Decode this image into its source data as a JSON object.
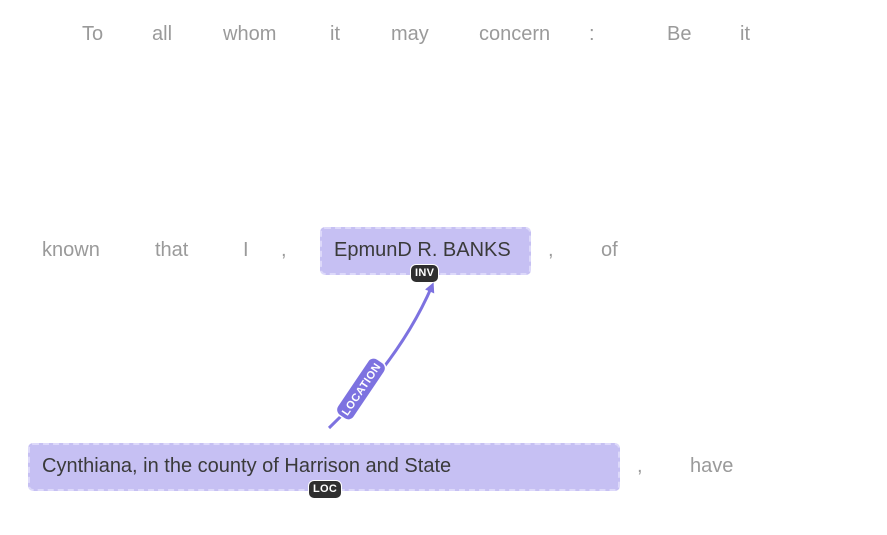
{
  "lines": [
    [
      "To",
      "all",
      "whom",
      "it",
      "may",
      "concern",
      ":",
      "Be",
      "it"
    ],
    [
      "known",
      "that",
      "I",
      ",",
      ",",
      "of"
    ],
    [
      ",",
      "have"
    ]
  ],
  "entities": [
    {
      "text": "EpmunD R. BANKS",
      "tag": "INV"
    },
    {
      "text": "Cynthiana, in the county of Harrison and State",
      "tag": "LOC"
    }
  ],
  "relation": {
    "label": "LOCATION",
    "color": "#7d72e0"
  },
  "colors": {
    "entity_bg": "#c6c0f3",
    "token": "#9a9a9a",
    "tag_bg": "#2f2f2f"
  }
}
